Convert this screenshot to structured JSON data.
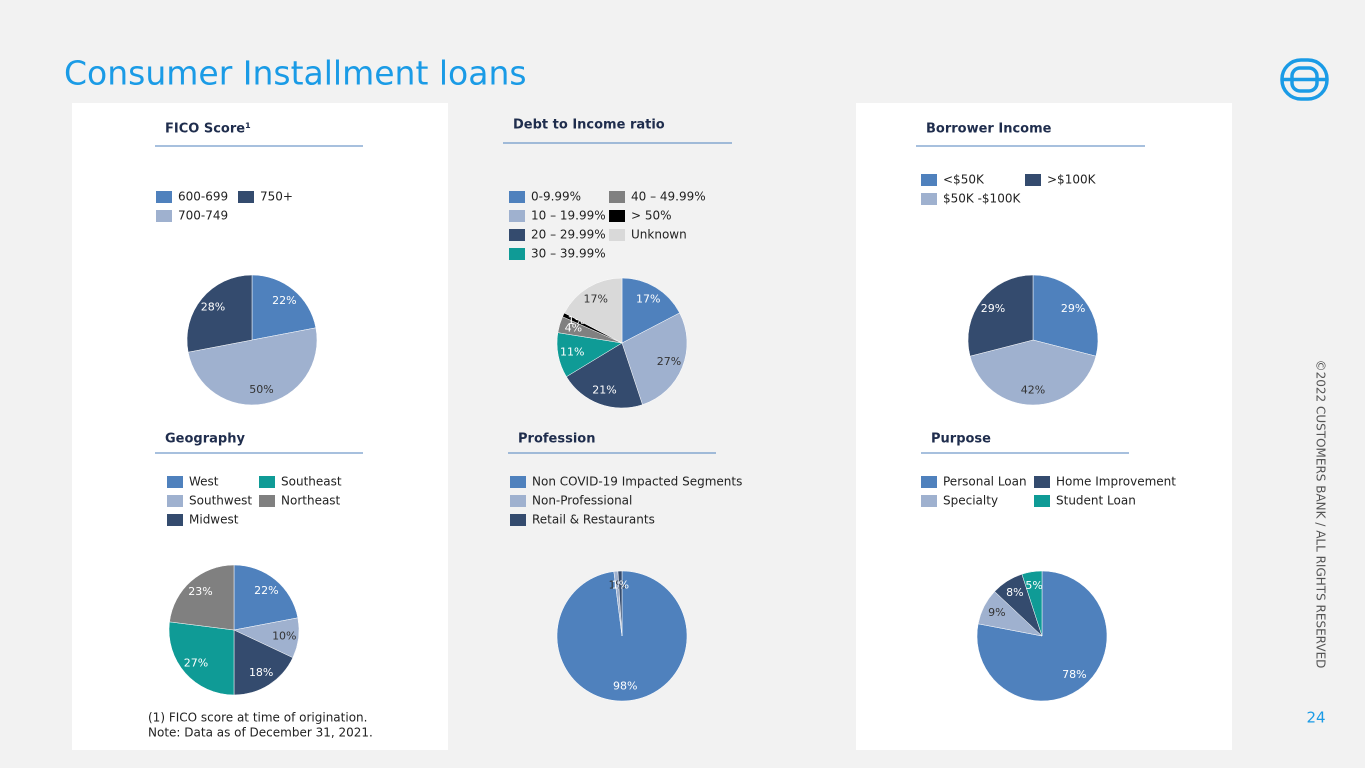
{
  "title": "Consumer Installment loans",
  "footnotes": [
    "(1) FICO score at time of origination.",
    "Note: Data as of December 31, 2021."
  ],
  "copyright": "©2022 CUSTOMERS BANK / ALL RIGHTS RESERVED",
  "page_number": "24",
  "chart_data": [
    {
      "type": "pie",
      "title": "FICO Score¹",
      "categories": [
        "600-699",
        "700-749",
        "750+"
      ],
      "values": [
        22,
        50,
        28
      ],
      "value_labels": [
        "22%",
        "50%",
        "28%"
      ],
      "colors": [
        "#4f81bd",
        "#9fb1cf",
        "#344b6e"
      ]
    },
    {
      "type": "pie",
      "title": "Debt to Income ratio",
      "categories": [
        "0-9.99%",
        "10 – 19.99%",
        "20 – 29.99%",
        "30 – 39.99%",
        "40 – 49.99%",
        "> 50%",
        "Unknown"
      ],
      "values": [
        17,
        27,
        21,
        11,
        4,
        1,
        17
      ],
      "value_labels": [
        "17%",
        "27%",
        "21%",
        "11%",
        "4%",
        "1%",
        "17%"
      ],
      "colors": [
        "#4f81bd",
        "#9fb1cf",
        "#344b6e",
        "#0f9b96",
        "#808080",
        "#000000",
        "#d9d9d9"
      ]
    },
    {
      "type": "pie",
      "title": "Borrower Income",
      "categories": [
        "<$50K",
        "$50K -$100K",
        ">$100K"
      ],
      "values": [
        29,
        42,
        29
      ],
      "value_labels": [
        "29%",
        "42%",
        "29%"
      ],
      "colors": [
        "#4f81bd",
        "#9fb1cf",
        "#344b6e"
      ]
    },
    {
      "type": "pie",
      "title": "Geography",
      "categories": [
        "West",
        "Southwest",
        "Midwest",
        "Southeast",
        "Northeast"
      ],
      "values": [
        22,
        10,
        18,
        27,
        23
      ],
      "value_labels": [
        "22%",
        "10%",
        "18%",
        "27%",
        "23%"
      ],
      "colors": [
        "#4f81bd",
        "#9fb1cf",
        "#344b6e",
        "#0f9b96",
        "#808080"
      ]
    },
    {
      "type": "pie",
      "title": "Profession",
      "categories": [
        "Non COVID-19 Impacted Segments",
        "Non-Professional",
        "Retail & Restaurants"
      ],
      "values": [
        98,
        1,
        1
      ],
      "value_labels": [
        "98%",
        "1%",
        "1%"
      ],
      "colors": [
        "#4f81bd",
        "#9fb1cf",
        "#344b6e"
      ]
    },
    {
      "type": "pie",
      "title": "Purpose",
      "categories": [
        "Personal Loan",
        "Specialty",
        "Home Improvement",
        "Student Loan"
      ],
      "values": [
        78,
        9,
        8,
        5
      ],
      "value_labels": [
        "78%",
        "9%",
        "8%",
        "5%"
      ],
      "colors": [
        "#4f81bd",
        "#9fb1cf",
        "#344b6e",
        "#0f9b96"
      ]
    }
  ]
}
